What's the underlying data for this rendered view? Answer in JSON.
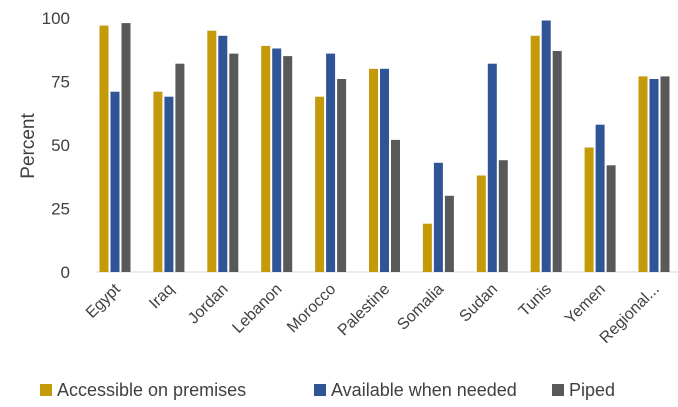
{
  "chart_data": {
    "type": "bar",
    "title": "",
    "xlabel": "",
    "ylabel": "Percent",
    "ylim": [
      0,
      100
    ],
    "yticks": [
      0,
      25,
      50,
      75,
      100
    ],
    "grid": false,
    "legend_position": "bottom",
    "categories": [
      "Egypt",
      "Iraq",
      "Jordan",
      "Lebanon",
      "Morocco",
      "Palestine",
      "Somalia",
      "Sudan",
      "Tunis",
      "Yemen",
      "Regional..."
    ],
    "series": [
      {
        "name": "Accessible on premises",
        "color": "#C49A0A",
        "values": [
          97,
          71,
          95,
          89,
          69,
          80,
          19,
          38,
          93,
          49,
          77
        ]
      },
      {
        "name": "Available when needed",
        "color": "#2F5597",
        "values": [
          71,
          69,
          93,
          88,
          86,
          80,
          43,
          82,
          99,
          58,
          76
        ]
      },
      {
        "name": "Piped",
        "color": "#595959",
        "values": [
          98,
          82,
          86,
          85,
          76,
          52,
          30,
          44,
          87,
          42,
          77
        ]
      }
    ]
  }
}
